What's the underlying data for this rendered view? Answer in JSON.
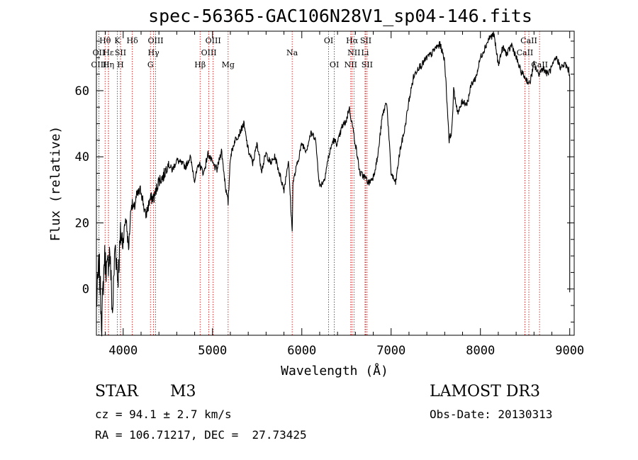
{
  "chart_data": {
    "type": "line",
    "title": "spec-56365-GAC106N28V1_sp04-146.fits",
    "xlabel": "Wavelength (Å)",
    "ylabel": "Flux (relative)",
    "xlim": [
      3700,
      9050
    ],
    "ylim": [
      -14,
      78
    ],
    "xticks": [
      4000,
      5000,
      6000,
      7000,
      8000,
      9000
    ],
    "yticks": [
      0,
      20,
      40,
      60
    ],
    "series": [
      {
        "name": "flux",
        "x": [
          3700,
          3730,
          3760,
          3790,
          3820,
          3850,
          3880,
          3910,
          3940,
          3970,
          4000,
          4030,
          4060,
          4090,
          4120,
          4150,
          4200,
          4250,
          4300,
          4350,
          4400,
          4450,
          4500,
          4550,
          4600,
          4650,
          4700,
          4750,
          4800,
          4850,
          4900,
          4950,
          5000,
          5050,
          5100,
          5150,
          5175,
          5200,
          5250,
          5300,
          5350,
          5400,
          5450,
          5500,
          5550,
          5600,
          5650,
          5700,
          5750,
          5800,
          5850,
          5892,
          5900,
          5950,
          6000,
          6050,
          6100,
          6150,
          6200,
          6250,
          6300,
          6350,
          6400,
          6450,
          6500,
          6530,
          6563,
          6600,
          6650,
          6700,
          6750,
          6800,
          6850,
          6900,
          6950,
          7000,
          7050,
          7100,
          7150,
          7200,
          7250,
          7300,
          7350,
          7400,
          7450,
          7500,
          7550,
          7600,
          7650,
          7680,
          7700,
          7750,
          7800,
          7850,
          7900,
          7950,
          8000,
          8050,
          8100,
          8150,
          8200,
          8250,
          8300,
          8350,
          8400,
          8450,
          8500,
          8550,
          8600,
          8650,
          8700,
          8750,
          8800,
          8850,
          8900,
          8950,
          8990,
          9000
        ],
        "values": [
          -5,
          8,
          -10,
          10,
          5,
          12,
          -8,
          14,
          3,
          16,
          15,
          22,
          12,
          26,
          24,
          28,
          30,
          22,
          27,
          28,
          33,
          34,
          38,
          36,
          39,
          38,
          37,
          40,
          33,
          38,
          35,
          41,
          38,
          36,
          42,
          30,
          26,
          40,
          45,
          47,
          50,
          42,
          38,
          44,
          36,
          41,
          38,
          40,
          35,
          30,
          39,
          17,
          32,
          38,
          44,
          42,
          47,
          46,
          31,
          33,
          40,
          45,
          44,
          49,
          51,
          55,
          50,
          44,
          35,
          34,
          32,
          34,
          40,
          52,
          57,
          35,
          32,
          42,
          48,
          57,
          64,
          67,
          68,
          70,
          71,
          73,
          74,
          69,
          45,
          48,
          60,
          53,
          57,
          56,
          62,
          64,
          70,
          73,
          76,
          77,
          68,
          73,
          71,
          74,
          70,
          66,
          64,
          62,
          68,
          65,
          67,
          65,
          67,
          70,
          67,
          68,
          66,
          64
        ]
      }
    ],
    "lines": [
      {
        "name": "Hθ",
        "wave": 3797,
        "row": 1
      },
      {
        "name": "OII",
        "wave": 3727,
        "row": 2
      },
      {
        "name": "OIII",
        "wave": 3727,
        "row": 3
      },
      {
        "name": "Hε",
        "wave": 3835,
        "row": 2
      },
      {
        "name": "Hη",
        "wave": 3835,
        "row": 3
      },
      {
        "name": "K",
        "wave": 3934,
        "row": 1
      },
      {
        "name": "SII",
        "wave": 3970,
        "row": 2
      },
      {
        "name": "H",
        "wave": 3969,
        "row": 3
      },
      {
        "name": "Hδ",
        "wave": 4102,
        "row": 1
      },
      {
        "name": "OIII",
        "wave": 4363,
        "row": 1
      },
      {
        "name": "Hγ",
        "wave": 4340,
        "row": 2
      },
      {
        "name": "G",
        "wave": 4305,
        "row": 3
      },
      {
        "name": "Hβ",
        "wave": 4861,
        "row": 3
      },
      {
        "name": "OIII",
        "wave": 5007,
        "row": 1
      },
      {
        "name": "OIII",
        "wave": 4959,
        "row": 2
      },
      {
        "name": "Mg",
        "wave": 5175,
        "row": 3
      },
      {
        "name": "Na",
        "wave": 5892,
        "row": 2
      },
      {
        "name": "OI",
        "wave": 6300,
        "row": 1
      },
      {
        "name": "OI",
        "wave": 6364,
        "row": 3
      },
      {
        "name": "Hα",
        "wave": 6563,
        "row": 1
      },
      {
        "name": "SII",
        "wave": 6716,
        "row": 1
      },
      {
        "name": "NII",
        "wave": 6584,
        "row": 2
      },
      {
        "name": "Li",
        "wave": 6708,
        "row": 2
      },
      {
        "name": "NII",
        "wave": 6548,
        "row": 3
      },
      {
        "name": "SII",
        "wave": 6731,
        "row": 3
      },
      {
        "name": "CaII",
        "wave": 8542,
        "row": 1
      },
      {
        "name": "CaII",
        "wave": 8498,
        "row": 2
      },
      {
        "name": "CaII",
        "wave": 8662,
        "row": 3
      }
    ]
  },
  "info": {
    "class": "STAR",
    "subclass": "M3",
    "survey": "LAMOST DR3",
    "cz": "cz = 94.1 ± 2.7 km/s",
    "obs_date": "Obs-Date: 20130313",
    "coords": "RA = 106.71217, DEC =  27.73425"
  },
  "colors": {
    "axis": "#000000",
    "line": "#000000",
    "marker": "#cc0000"
  }
}
